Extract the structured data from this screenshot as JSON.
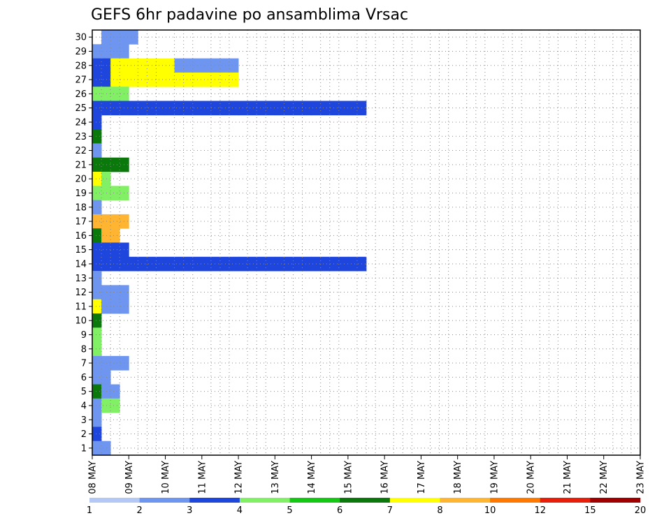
{
  "chart_data": {
    "type": "heatmap",
    "title": "GEFS 6hr padavine po ansamblima Vrsac",
    "xlabel": "",
    "ylabel": "",
    "x_tick_labels": [
      "08 MAY",
      "09 MAY",
      "10 MAY",
      "11 MAY",
      "12 MAY",
      "13 MAY",
      "14 MAY",
      "15 MAY",
      "16 MAY",
      "17 MAY",
      "18 MAY",
      "19 MAY",
      "20 MAY",
      "21 MAY",
      "22 MAY",
      "23 MAY"
    ],
    "y_tick_labels": [
      "1",
      "2",
      "3",
      "4",
      "5",
      "6",
      "7",
      "8",
      "9",
      "10",
      "11",
      "12",
      "13",
      "14",
      "15",
      "16",
      "17",
      "18",
      "19",
      "20",
      "21",
      "22",
      "23",
      "24",
      "25",
      "26",
      "27",
      "28",
      "29",
      "30"
    ],
    "ylim": [
      0.5,
      30.5
    ],
    "grid": true,
    "colorbar": {
      "labels": [
        "1",
        "2",
        "3",
        "4",
        "5",
        "6",
        "7",
        "8",
        "10",
        "12",
        "15",
        "20"
      ],
      "colors": [
        "#b4c8f5",
        "#6e96f0",
        "#1e46dc",
        "#82f064",
        "#14c814",
        "#0a780a",
        "#ffff00",
        "#ffb432",
        "#ff7800",
        "#e61e0a",
        "#a00000"
      ]
    },
    "cells": [
      [
        1,
        1,
        1
      ],
      [
        2,
        1,
        1
      ],
      [
        2,
        30,
        1
      ],
      [
        3,
        30,
        1
      ],
      [
        4,
        30,
        1
      ],
      [
        5,
        30,
        1
      ],
      [
        1,
        29,
        1
      ],
      [
        2,
        29,
        1
      ],
      [
        3,
        29,
        1
      ],
      [
        4,
        29,
        1
      ],
      [
        1,
        28,
        2
      ],
      [
        2,
        28,
        2
      ],
      [
        3,
        28,
        6
      ],
      [
        4,
        28,
        6
      ],
      [
        5,
        28,
        6
      ],
      [
        6,
        28,
        6
      ],
      [
        7,
        28,
        6
      ],
      [
        8,
        28,
        6
      ],
      [
        9,
        28,
        6
      ],
      [
        10,
        28,
        1
      ],
      [
        11,
        28,
        1
      ],
      [
        12,
        28,
        1
      ],
      [
        13,
        28,
        1
      ],
      [
        14,
        28,
        1
      ],
      [
        15,
        28,
        1
      ],
      [
        16,
        28,
        1
      ],
      [
        1,
        27,
        2
      ],
      [
        2,
        27,
        2
      ],
      [
        3,
        27,
        6
      ],
      [
        4,
        27,
        6
      ],
      [
        5,
        27,
        6
      ],
      [
        6,
        27,
        6
      ],
      [
        7,
        27,
        6
      ],
      [
        8,
        27,
        6
      ],
      [
        9,
        27,
        6
      ],
      [
        10,
        27,
        6
      ],
      [
        11,
        27,
        6
      ],
      [
        12,
        27,
        6
      ],
      [
        13,
        27,
        6
      ],
      [
        14,
        27,
        6
      ],
      [
        15,
        27,
        6
      ],
      [
        16,
        27,
        6
      ],
      [
        1,
        26,
        3
      ],
      [
        2,
        26,
        3
      ],
      [
        3,
        26,
        3
      ],
      [
        4,
        26,
        3
      ],
      [
        1,
        25,
        2
      ],
      [
        2,
        25,
        2
      ],
      [
        3,
        25,
        2
      ],
      [
        4,
        25,
        2
      ],
      [
        5,
        25,
        2
      ],
      [
        6,
        25,
        2
      ],
      [
        7,
        25,
        2
      ],
      [
        8,
        25,
        2
      ],
      [
        9,
        25,
        2
      ],
      [
        10,
        25,
        2
      ],
      [
        11,
        25,
        2
      ],
      [
        12,
        25,
        2
      ],
      [
        13,
        25,
        2
      ],
      [
        14,
        25,
        2
      ],
      [
        15,
        25,
        2
      ],
      [
        16,
        25,
        2
      ],
      [
        17,
        25,
        2
      ],
      [
        18,
        25,
        2
      ],
      [
        19,
        25,
        2
      ],
      [
        20,
        25,
        2
      ],
      [
        21,
        25,
        2
      ],
      [
        22,
        25,
        2
      ],
      [
        23,
        25,
        2
      ],
      [
        24,
        25,
        2
      ],
      [
        25,
        25,
        2
      ],
      [
        26,
        25,
        2
      ],
      [
        27,
        25,
        2
      ],
      [
        28,
        25,
        2
      ],
      [
        29,
        25,
        2
      ],
      [
        30,
        25,
        2
      ],
      [
        1,
        24,
        2
      ],
      [
        1,
        23,
        5
      ],
      [
        1,
        22,
        1
      ],
      [
        1,
        21,
        5
      ],
      [
        2,
        21,
        5
      ],
      [
        3,
        21,
        5
      ],
      [
        4,
        21,
        5
      ],
      [
        1,
        20,
        6
      ],
      [
        2,
        20,
        3
      ],
      [
        1,
        19,
        3
      ],
      [
        2,
        19,
        3
      ],
      [
        3,
        19,
        3
      ],
      [
        4,
        19,
        3
      ],
      [
        1,
        18,
        1
      ],
      [
        1,
        17,
        7
      ],
      [
        2,
        17,
        7
      ],
      [
        3,
        17,
        7
      ],
      [
        4,
        17,
        7
      ],
      [
        1,
        16,
        5
      ],
      [
        2,
        16,
        7
      ],
      [
        3,
        16,
        7
      ],
      [
        1,
        15,
        2
      ],
      [
        2,
        15,
        2
      ],
      [
        3,
        15,
        2
      ],
      [
        4,
        15,
        2
      ],
      [
        1,
        14,
        2
      ],
      [
        2,
        14,
        2
      ],
      [
        3,
        14,
        2
      ],
      [
        4,
        14,
        2
      ],
      [
        5,
        14,
        2
      ],
      [
        6,
        14,
        2
      ],
      [
        7,
        14,
        2
      ],
      [
        8,
        14,
        2
      ],
      [
        9,
        14,
        2
      ],
      [
        10,
        14,
        2
      ],
      [
        11,
        14,
        2
      ],
      [
        12,
        14,
        2
      ],
      [
        13,
        14,
        2
      ],
      [
        14,
        14,
        2
      ],
      [
        15,
        14,
        2
      ],
      [
        16,
        14,
        2
      ],
      [
        17,
        14,
        2
      ],
      [
        18,
        14,
        2
      ],
      [
        19,
        14,
        2
      ],
      [
        20,
        14,
        2
      ],
      [
        21,
        14,
        2
      ],
      [
        22,
        14,
        2
      ],
      [
        23,
        14,
        2
      ],
      [
        24,
        14,
        2
      ],
      [
        25,
        14,
        2
      ],
      [
        26,
        14,
        2
      ],
      [
        27,
        14,
        2
      ],
      [
        28,
        14,
        2
      ],
      [
        29,
        14,
        2
      ],
      [
        30,
        14,
        2
      ],
      [
        1,
        13,
        1
      ],
      [
        1,
        12,
        1
      ],
      [
        2,
        12,
        1
      ],
      [
        3,
        12,
        1
      ],
      [
        4,
        12,
        1
      ],
      [
        1,
        11,
        6
      ],
      [
        2,
        11,
        1
      ],
      [
        3,
        11,
        1
      ],
      [
        4,
        11,
        1
      ],
      [
        1,
        10,
        5
      ],
      [
        1,
        9,
        3
      ],
      [
        1,
        8,
        3
      ],
      [
        1,
        7,
        1
      ],
      [
        2,
        7,
        1
      ],
      [
        3,
        7,
        1
      ],
      [
        4,
        7,
        1
      ],
      [
        1,
        6,
        1
      ],
      [
        2,
        6,
        1
      ],
      [
        1,
        5,
        5
      ],
      [
        2,
        5,
        1
      ],
      [
        3,
        5,
        1
      ],
      [
        1,
        4,
        1
      ],
      [
        2,
        4,
        3
      ],
      [
        3,
        4,
        3
      ],
      [
        1,
        3,
        1
      ],
      [
        1,
        2,
        2
      ],
      [
        1,
        1,
        1
      ]
    ]
  }
}
